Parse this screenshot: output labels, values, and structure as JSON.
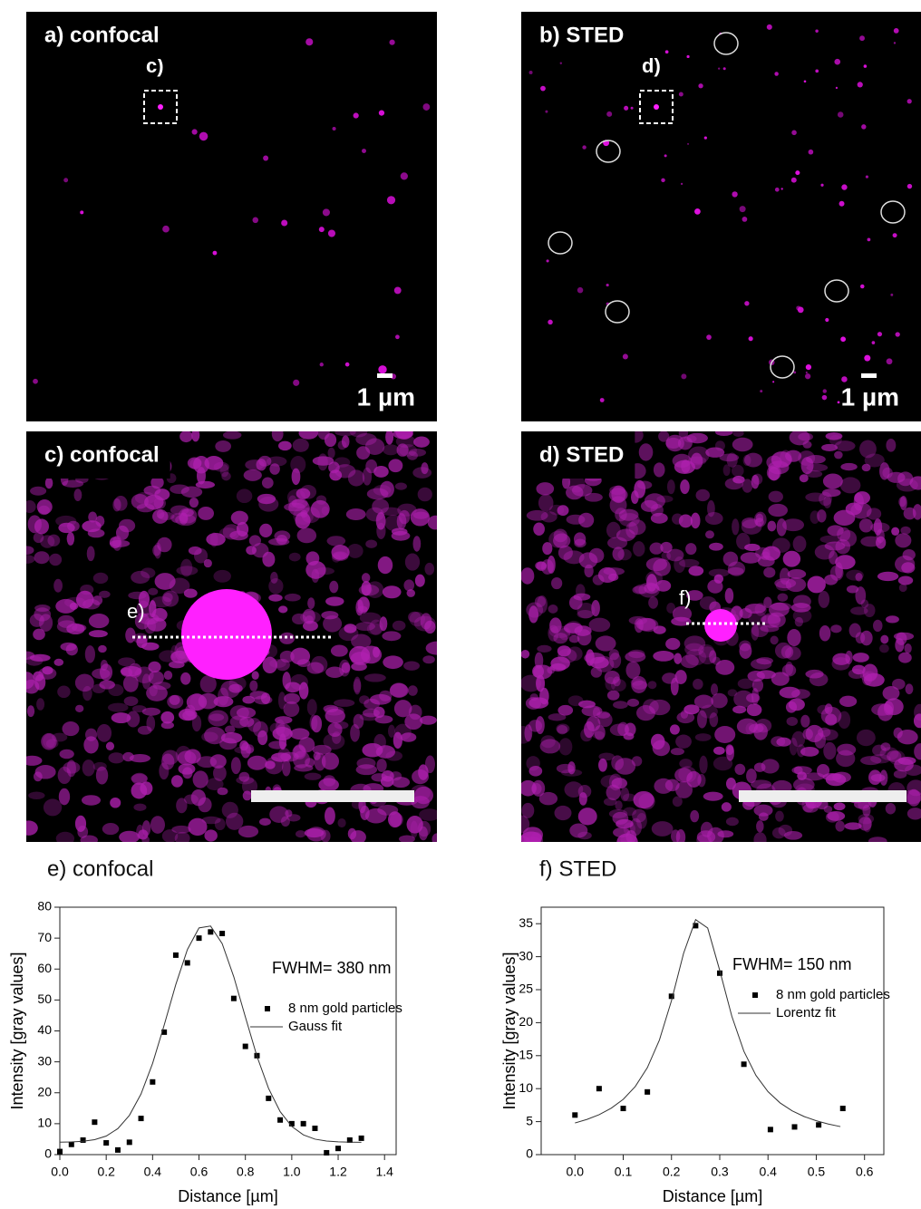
{
  "panels": [
    {
      "label": "a) confocal",
      "inset_label": "c)",
      "scale_label": "1 µm"
    },
    {
      "label": "b) STED",
      "inset_label": "d)",
      "scale_label": "1 µm"
    },
    {
      "label": "c) confocal",
      "inset_label": "e)"
    },
    {
      "label": "d) STED",
      "inset_label": "f)"
    }
  ],
  "chart_data": [
    {
      "type": "scatter",
      "title": "e) confocal",
      "annotation": "FWHM= 380 nm",
      "xlabel": "Distance [µm]",
      "ylabel": "Intensity [gray values]",
      "xlim": [
        0,
        1.45
      ],
      "ylim": [
        0,
        80
      ],
      "xticks": [
        {
          "value": 0,
          "label": "0.0"
        },
        0.2,
        0.4,
        0.6,
        0.8,
        {
          "value": 1,
          "label": "1.0"
        },
        1.2,
        1.4
      ],
      "yticks": [
        0,
        10,
        20,
        30,
        40,
        50,
        60,
        70,
        80
      ],
      "series": [
        {
          "name": "8 nm gold particles",
          "type": "scatter",
          "color": "#000000",
          "x": [
            0,
            0.05,
            0.1,
            0.15,
            0.2,
            0.25,
            0.3,
            0.35,
            0.4,
            0.45,
            0.5,
            0.55,
            0.6,
            0.65,
            0.7,
            0.75,
            0.8,
            0.85,
            0.9,
            0.95,
            1.0,
            1.05,
            1.1,
            1.15,
            1.2,
            1.25,
            1.3
          ],
          "values": [
            1,
            3.3,
            4.7,
            10.5,
            3.8,
            1.5,
            4,
            11.7,
            23.5,
            39.6,
            64.5,
            62,
            70,
            72,
            71.5,
            50.5,
            35,
            32,
            18.2,
            11.2,
            10,
            10,
            8.5,
            0.6,
            2,
            4.7,
            5.3
          ]
        },
        {
          "name": "Gauss fit",
          "type": "line",
          "color": "#333333",
          "x": [
            0,
            0.05,
            0.1,
            0.15,
            0.2,
            0.25,
            0.3,
            0.35,
            0.4,
            0.45,
            0.5,
            0.55,
            0.6,
            0.65,
            0.7,
            0.75,
            0.8,
            0.85,
            0.9,
            0.95,
            1.0,
            1.05,
            1.1,
            1.15,
            1.2,
            1.25,
            1.3
          ],
          "values": [
            4.03,
            4.11,
            4.32,
            4.85,
            6.0,
            8.4,
            12.7,
            19.6,
            29.5,
            41.9,
            55.0,
            66.3,
            73.3,
            73.9,
            68.2,
            57.5,
            44.5,
            31.8,
            21.4,
            13.9,
            9.1,
            6.4,
            5.0,
            4.4,
            4.14,
            4.04,
            4.0
          ]
        }
      ]
    },
    {
      "type": "scatter",
      "title": "f) STED",
      "annotation": "FWHM= 150 nm",
      "xlabel": "Distance [µm]",
      "ylabel": "Intensity [gray values]",
      "xlim": [
        -0.07,
        0.64
      ],
      "ylim": [
        0,
        37.5
      ],
      "xticks": [
        {
          "value": 0,
          "label": "0.0"
        },
        0.1,
        0.2,
        0.3,
        0.4,
        0.5,
        0.6
      ],
      "yticks": [
        0,
        5,
        10,
        15,
        20,
        25,
        30,
        35
      ],
      "series": [
        {
          "name": "8 nm gold particles",
          "type": "scatter",
          "color": "#000000",
          "x": [
            0,
            0.05,
            0.1,
            0.15,
            0.2,
            0.25,
            0.3,
            0.35,
            0.405,
            0.455,
            0.505,
            0.555
          ],
          "values": [
            6,
            10,
            7,
            9.5,
            24,
            34.7,
            27.5,
            13.7,
            3.8,
            4.2,
            4.5,
            7
          ]
        },
        {
          "name": "Lorentz fit",
          "type": "line",
          "color": "#333333",
          "x": [
            0,
            0.025,
            0.05,
            0.075,
            0.1,
            0.125,
            0.15,
            0.175,
            0.2,
            0.225,
            0.25,
            0.275,
            0.3,
            0.325,
            0.35,
            0.375,
            0.4,
            0.425,
            0.45,
            0.475,
            0.5,
            0.525,
            0.55
          ],
          "values": [
            4.8,
            5.34,
            6.05,
            7.03,
            8.38,
            10.33,
            13.18,
            17.37,
            23.34,
            30.5,
            35.62,
            34.35,
            27.91,
            20.98,
            15.67,
            12.01,
            9.54,
            7.84,
            6.64,
            5.77,
            5.13,
            4.64,
            4.25
          ]
        }
      ]
    }
  ]
}
